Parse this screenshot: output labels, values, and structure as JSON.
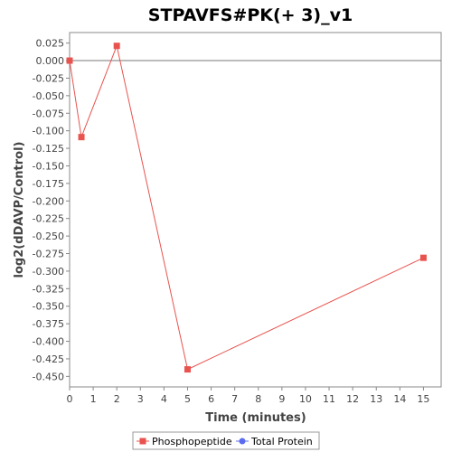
{
  "chart_data": {
    "type": "line",
    "title": "STPAVFS#PK(+ 3)_v1",
    "xlabel": "Time (minutes)",
    "ylabel": "log2(dDAVP/Control)",
    "xlim": [
      0,
      15.75
    ],
    "ylim": [
      -0.465,
      0.04
    ],
    "x_ticks": [
      0,
      1,
      2,
      3,
      4,
      5,
      6,
      7,
      8,
      9,
      10,
      11,
      12,
      13,
      14,
      15
    ],
    "y_ticks": [
      0.025,
      0.0,
      -0.025,
      -0.05,
      -0.075,
      -0.1,
      -0.125,
      -0.15,
      -0.175,
      -0.2,
      -0.225,
      -0.25,
      -0.275,
      -0.3,
      -0.325,
      -0.35,
      -0.375,
      -0.4,
      -0.425,
      -0.45
    ],
    "y_tick_labels": [
      "0.025",
      "0.000",
      "-0.025",
      "-0.050",
      "-0.075",
      "-0.100",
      "-0.125",
      "-0.150",
      "-0.175",
      "-0.200",
      "-0.225",
      "-0.250",
      "-0.275",
      "-0.300",
      "-0.325",
      "-0.350",
      "-0.375",
      "-0.400",
      "-0.425",
      "-0.450"
    ],
    "zero_line": true,
    "grid": false,
    "legend_position": "bottom-center",
    "series": [
      {
        "name": "Phosphopeptide",
        "color": "#e8534f",
        "marker": "square",
        "x": [
          0,
          0.5,
          2,
          5,
          15
        ],
        "y": [
          0.0,
          -0.109,
          0.021,
          -0.44,
          -0.281
        ]
      },
      {
        "name": "Total Protein",
        "color": "#5b6cf0",
        "marker": "circle",
        "x": [],
        "y": []
      }
    ]
  }
}
